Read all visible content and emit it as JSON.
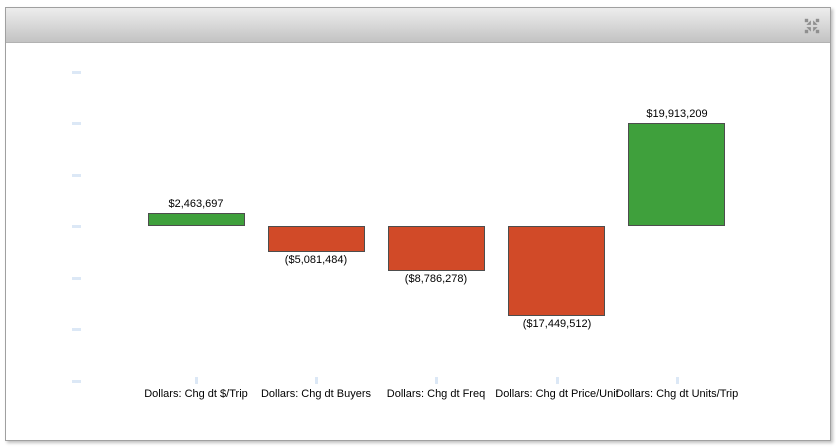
{
  "widget": {
    "header": {
      "collapse_icon": "collapse-arrows-icon"
    }
  },
  "colors": {
    "positive_bar": "#3FA03C",
    "negative_bar": "#D14A28",
    "bar_border": "#4D4D4D",
    "axis_tick": "#DCE8F6",
    "value_label_text": "#000000",
    "category_label_text": "#000000",
    "header_gradient_top": "#EDEDED",
    "header_gradient_bottom": "#C3C3C3",
    "header_icon_color": "#8F8F8F",
    "panel_border": "#A0A0A0",
    "panel_background": "#FFFFFF"
  },
  "chart_data": {
    "type": "bar",
    "subtype": "waterfall-contribution",
    "title": "",
    "xlabel": "",
    "ylabel": "",
    "categories": [
      "Dollars: Chg dt $/Trip",
      "Dollars: Chg dt Buyers",
      "Dollars: Chg dt Freq",
      "Dollars: Chg dt Price/Unit",
      "Dollars: Chg dt Units/Trip"
    ],
    "values": [
      2463697,
      -5081484,
      -8786278,
      -17449512,
      19913209
    ],
    "value_labels": [
      "$2,463,697",
      "($5,081,484)",
      "($8,786,278)",
      "($17,449,512)",
      "$19,913,209"
    ],
    "bar_signs": [
      "positive",
      "negative",
      "negative",
      "negative",
      "positive"
    ],
    "ylim": [
      -30000000,
      30000000
    ],
    "y_tick_interval": 10000000,
    "y_tick_labels_visible": false,
    "grid": false,
    "legend": false
  }
}
